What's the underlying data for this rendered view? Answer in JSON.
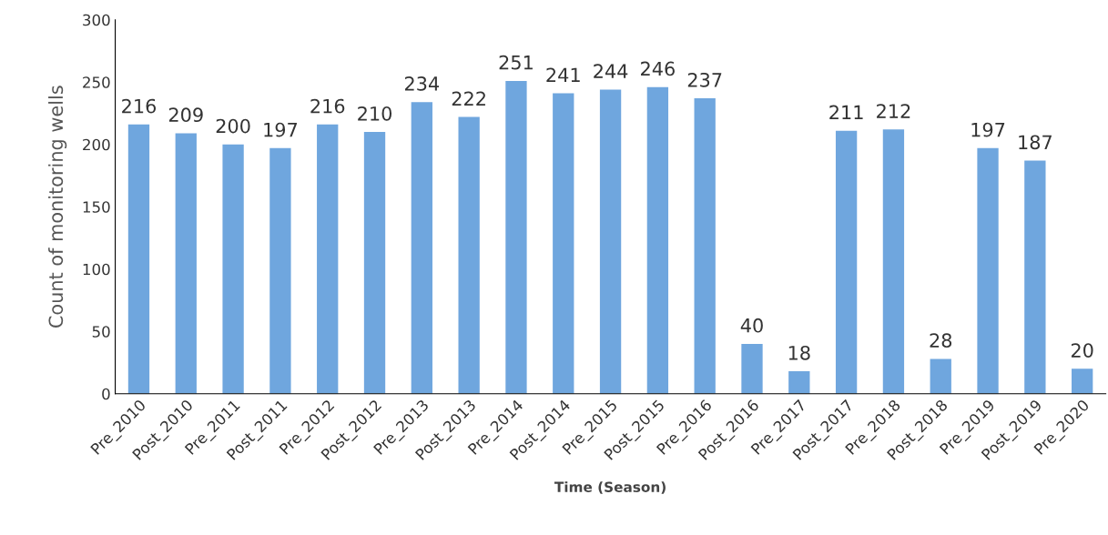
{
  "chart_data": {
    "type": "bar",
    "xlabel": "Time (Season)",
    "ylabel": "Count of monitoring wells",
    "categories": [
      "Pre_2010",
      "Post_2010",
      "Pre_2011",
      "Post_2011",
      "Pre_2012",
      "Post_2012",
      "Pre_2013",
      "Post_2013",
      "Pre_2014",
      "Post_2014",
      "Pre_2015",
      "Post_2015",
      "Pre_2016",
      "Post_2016",
      "Pre_2017",
      "Post_2017",
      "Pre_2018",
      "Post_2018",
      "Pre_2019",
      "Post_2019",
      "Pre_2020"
    ],
    "values": [
      216,
      209,
      200,
      197,
      216,
      210,
      234,
      222,
      251,
      241,
      244,
      246,
      237,
      40,
      18,
      211,
      212,
      28,
      197,
      187,
      20
    ],
    "color": "#6fa6de",
    "ylim": [
      0,
      300
    ],
    "yticks": [
      0,
      50,
      100,
      150,
      200,
      250,
      300
    ],
    "grid": false,
    "data_labels": true
  }
}
